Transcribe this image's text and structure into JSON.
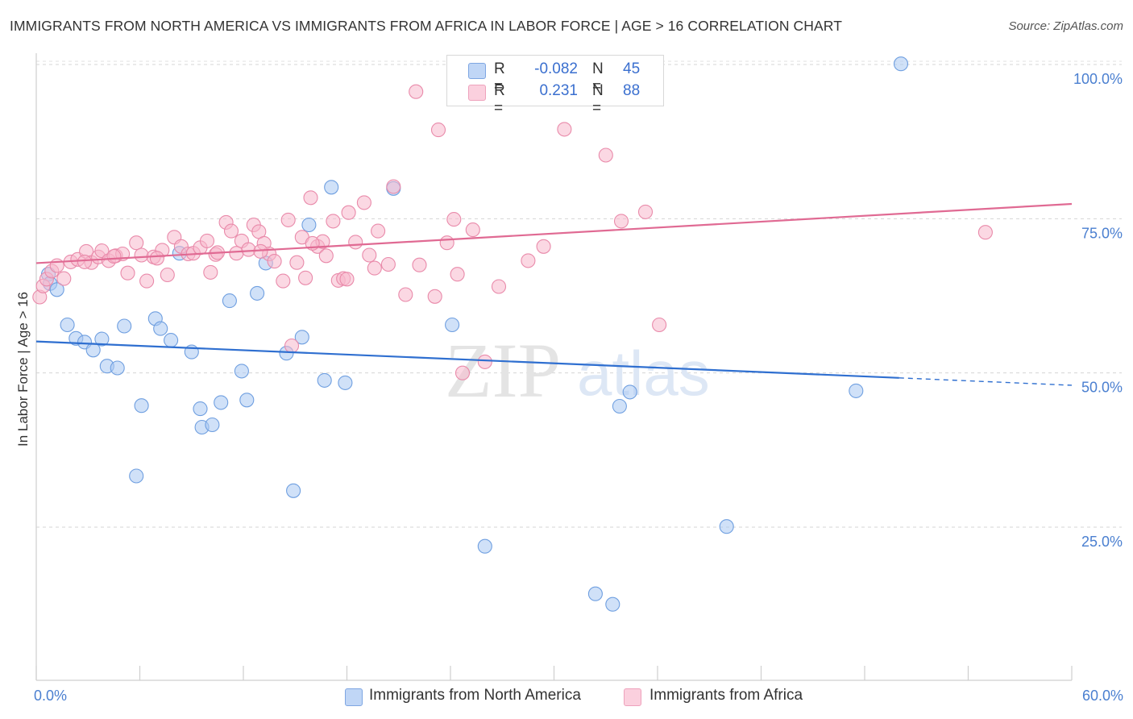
{
  "header": {
    "title": "IMMIGRANTS FROM NORTH AMERICA VS IMMIGRANTS FROM AFRICA IN LABOR FORCE | AGE > 16 CORRELATION CHART",
    "source": "Source: ZipAtlas.com"
  },
  "watermark": {
    "zip": "ZIP",
    "atlas": "atlas"
  },
  "legend": {
    "rows": [
      {
        "r_label": "R =",
        "r_value": "-0.082",
        "n_label": "N =",
        "n_value": "45",
        "color": "#a9c8f2"
      },
      {
        "r_label": "R =",
        "r_value": "0.231",
        "n_label": "N =",
        "n_value": "88",
        "color": "#f7b8cc"
      }
    ]
  },
  "bottom_legend": {
    "north_america": "Immigrants from North America",
    "africa": "Immigrants from Africa"
  },
  "chart_data": {
    "type": "scatter",
    "title": "IMMIGRANTS FROM NORTH AMERICA VS IMMIGRANTS FROM AFRICA IN LABOR FORCE | AGE > 16 CORRELATION CHART",
    "xlabel": "",
    "ylabel": "In Labor Force | Age > 16",
    "xlim": [
      0,
      60
    ],
    "ylim": [
      0,
      102
    ],
    "x_tick_labels": [
      "0.0%",
      "60.0%"
    ],
    "y_tick_labels": [
      "100.0%",
      "75.0%",
      "50.0%",
      "25.0%"
    ],
    "y_ticks": [
      100,
      75,
      50,
      25
    ],
    "grid": "horizontal dashed",
    "legend_position": "top-center",
    "colors": {
      "north_america": "#4a7fd0",
      "africa": "#e06a93"
    },
    "series": [
      {
        "name": "Immigrants from North America",
        "color": "#a9c8f2",
        "edge": "#6f9fe0",
        "trend": {
          "x0": 0,
          "y0": 55.1,
          "x1": 50,
          "y1": 49.2,
          "dashed_to_x": 60,
          "dashed_to_y": 48.0
        },
        "points": [
          [
            0.7,
            66
          ],
          [
            0.8,
            64.5
          ],
          [
            1.2,
            63.5
          ],
          [
            1.8,
            57.8
          ],
          [
            2.3,
            55.6
          ],
          [
            2.8,
            55.0
          ],
          [
            3.3,
            53.7
          ],
          [
            3.8,
            55.5
          ],
          [
            4.1,
            51.1
          ],
          [
            4.7,
            50.8
          ],
          [
            5.1,
            57.6
          ],
          [
            6.1,
            44.7
          ],
          [
            5.8,
            33.3
          ],
          [
            6.9,
            58.8
          ],
          [
            7.2,
            57.2
          ],
          [
            7.8,
            55.3
          ],
          [
            8.3,
            69.4
          ],
          [
            9.0,
            53.4
          ],
          [
            9.6,
            41.2
          ],
          [
            9.5,
            44.2
          ],
          [
            10.2,
            41.6
          ],
          [
            10.7,
            45.2
          ],
          [
            11.2,
            61.7
          ],
          [
            11.9,
            50.3
          ],
          [
            12.2,
            45.6
          ],
          [
            12.8,
            62.9
          ],
          [
            13.3,
            67.8
          ],
          [
            14.5,
            53.2
          ],
          [
            14.9,
            30.9
          ],
          [
            15.4,
            55.8
          ],
          [
            15.8,
            74.0
          ],
          [
            16.7,
            48.8
          ],
          [
            17.1,
            80.1
          ],
          [
            17.9,
            48.4
          ],
          [
            20.7,
            79.9
          ],
          [
            24.1,
            57.8
          ],
          [
            26.0,
            21.9
          ],
          [
            28.0,
            100.3
          ],
          [
            32.4,
            14.2
          ],
          [
            33.4,
            12.5
          ],
          [
            33.8,
            44.6
          ],
          [
            34.4,
            46.9
          ],
          [
            40.0,
            25.1
          ],
          [
            47.5,
            47.1
          ],
          [
            50.1,
            100.1
          ]
        ]
      },
      {
        "name": "Immigrants from Africa",
        "color": "#f7b8cc",
        "edge": "#e98aaa",
        "trend": {
          "x0": 0,
          "y0": 67.8,
          "x1": 60,
          "y1": 77.4
        },
        "points": [
          [
            0.2,
            62.3
          ],
          [
            0.4,
            64.1
          ],
          [
            0.6,
            65.2
          ],
          [
            0.9,
            66.5
          ],
          [
            1.2,
            67.4
          ],
          [
            1.6,
            65.3
          ],
          [
            2.0,
            68.0
          ],
          [
            2.4,
            68.4
          ],
          [
            2.9,
            69.7
          ],
          [
            3.2,
            67.9
          ],
          [
            3.6,
            68.8
          ],
          [
            3.8,
            69.8
          ],
          [
            4.2,
            68.2
          ],
          [
            4.6,
            69.0
          ],
          [
            5.0,
            69.3
          ],
          [
            5.3,
            66.2
          ],
          [
            5.8,
            71.1
          ],
          [
            6.1,
            69.1
          ],
          [
            6.4,
            64.9
          ],
          [
            6.8,
            68.8
          ],
          [
            7.3,
            69.9
          ],
          [
            7.6,
            65.9
          ],
          [
            8.0,
            72.0
          ],
          [
            8.4,
            70.5
          ],
          [
            8.8,
            69.3
          ],
          [
            9.1,
            69.4
          ],
          [
            9.5,
            70.3
          ],
          [
            9.9,
            71.4
          ],
          [
            10.1,
            66.3
          ],
          [
            10.4,
            69.2
          ],
          [
            11.0,
            74.4
          ],
          [
            11.3,
            73.0
          ],
          [
            11.6,
            69.4
          ],
          [
            11.9,
            71.4
          ],
          [
            12.3,
            70.0
          ],
          [
            12.6,
            74.0
          ],
          [
            12.9,
            72.9
          ],
          [
            13.2,
            71.0
          ],
          [
            13.5,
            69.3
          ],
          [
            13.8,
            68.1
          ],
          [
            14.3,
            64.9
          ],
          [
            14.6,
            74.8
          ],
          [
            14.8,
            54.4
          ],
          [
            15.1,
            67.9
          ],
          [
            15.4,
            72.0
          ],
          [
            15.6,
            65.4
          ],
          [
            15.9,
            78.4
          ],
          [
            16.3,
            70.5
          ],
          [
            16.6,
            71.3
          ],
          [
            16.8,
            69.0
          ],
          [
            17.2,
            74.6
          ],
          [
            17.5,
            65.0
          ],
          [
            17.8,
            65.3
          ],
          [
            18.1,
            76.0
          ],
          [
            18.5,
            71.2
          ],
          [
            19.0,
            77.6
          ],
          [
            19.3,
            69.1
          ],
          [
            19.6,
            67.0
          ],
          [
            19.8,
            73.0
          ],
          [
            20.4,
            67.6
          ],
          [
            20.7,
            80.2
          ],
          [
            21.4,
            62.7
          ],
          [
            22.0,
            95.6
          ],
          [
            23.1,
            62.4
          ],
          [
            23.3,
            89.4
          ],
          [
            23.8,
            71.1
          ],
          [
            24.2,
            74.9
          ],
          [
            24.4,
            66.0
          ],
          [
            24.7,
            50.0
          ],
          [
            25.3,
            73.2
          ],
          [
            26.0,
            51.8
          ],
          [
            29.4,
            70.5
          ],
          [
            30.6,
            89.5
          ],
          [
            33.0,
            85.3
          ],
          [
            33.9,
            74.6
          ],
          [
            35.3,
            76.1
          ],
          [
            36.1,
            57.8
          ],
          [
            55.0,
            72.8
          ],
          [
            2.8,
            68.0
          ],
          [
            4.5,
            68.9
          ],
          [
            7.0,
            68.6
          ],
          [
            10.5,
            69.5
          ],
          [
            13.0,
            69.7
          ],
          [
            16.0,
            71.0
          ],
          [
            18.0,
            65.2
          ],
          [
            22.2,
            67.5
          ],
          [
            26.8,
            64.0
          ],
          [
            28.5,
            68.2
          ]
        ]
      }
    ]
  }
}
